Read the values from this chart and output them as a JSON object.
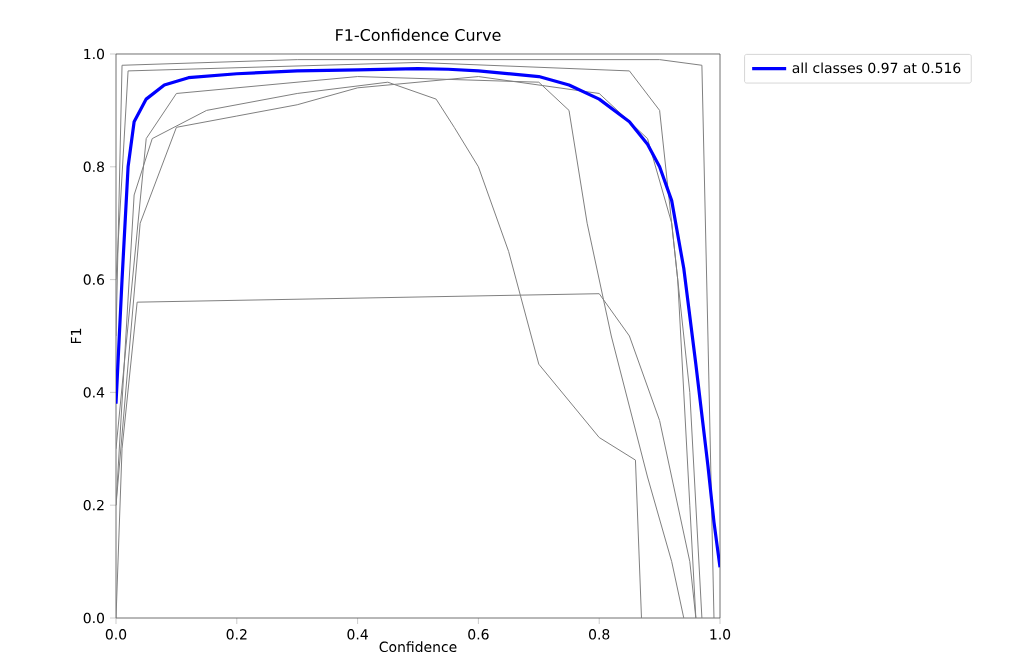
{
  "chart_data": {
    "type": "line",
    "title": "F1-Confidence Curve",
    "xlabel": "Confidence",
    "ylabel": "F1",
    "xlim": [
      0,
      1
    ],
    "ylim": [
      0,
      1
    ],
    "xticks": [
      {
        "value": 0,
        "label": "0.0"
      },
      {
        "value": 0.2,
        "label": "0.2"
      },
      {
        "value": 0.4,
        "label": "0.4"
      },
      {
        "value": 0.6,
        "label": "0.6"
      },
      {
        "value": 0.8,
        "label": "0.8"
      },
      {
        "value": 1,
        "label": "1.0"
      }
    ],
    "yticks": [
      {
        "value": 0,
        "label": "0.0"
      },
      {
        "value": 0.2,
        "label": "0.2"
      },
      {
        "value": 0.4,
        "label": "0.4"
      },
      {
        "value": 0.6,
        "label": "0.6"
      },
      {
        "value": 0.8,
        "label": "0.8"
      },
      {
        "value": 1,
        "label": "1.0"
      }
    ],
    "legend": "top right",
    "line_style": "solid",
    "series": [
      {
        "color": "#808080",
        "x": [
          0,
          0.01,
          0.035,
          0.8,
          0.85,
          0.9,
          0.95,
          0.96
        ],
        "values": [
          0,
          0.3,
          0.56,
          0.575,
          0.5,
          0.35,
          0.1,
          0
        ]
      },
      {
        "color": "#808080",
        "x": [
          0,
          0.03,
          0.06,
          0.15,
          0.3,
          0.45,
          0.53,
          0.56,
          0.6,
          0.65,
          0.7,
          0.8,
          0.86,
          0.87
        ],
        "values": [
          0.2,
          0.75,
          0.85,
          0.9,
          0.93,
          0.95,
          0.92,
          0.87,
          0.8,
          0.65,
          0.45,
          0.32,
          0.28,
          0
        ]
      },
      {
        "color": "#808080",
        "x": [
          0,
          0.01,
          0.3,
          0.6,
          0.9,
          0.97,
          0.98,
          0.99
        ],
        "values": [
          0.5,
          0.98,
          0.99,
          0.99,
          0.99,
          0.98,
          0.5,
          0
        ]
      },
      {
        "color": "#808080",
        "x": [
          0,
          0.05,
          0.1,
          0.4,
          0.7,
          0.75,
          0.78,
          0.82,
          0.88,
          0.92,
          0.94
        ],
        "values": [
          0.3,
          0.85,
          0.93,
          0.96,
          0.95,
          0.9,
          0.7,
          0.5,
          0.25,
          0.1,
          0
        ]
      },
      {
        "color": "#808080",
        "x": [
          0,
          0.04,
          0.1,
          0.2,
          0.3,
          0.4,
          0.6,
          0.8,
          0.88,
          0.92,
          0.95,
          0.97
        ],
        "values": [
          0.2,
          0.7,
          0.87,
          0.89,
          0.91,
          0.94,
          0.96,
          0.93,
          0.85,
          0.7,
          0.4,
          0
        ]
      },
      {
        "color": "#808080",
        "x": [
          0,
          0.02,
          0.5,
          0.85,
          0.9,
          0.93,
          0.95,
          0.96
        ],
        "values": [
          0.6,
          0.97,
          0.985,
          0.97,
          0.9,
          0.6,
          0.2,
          0
        ]
      },
      {
        "name": "all classes 0.97 at 0.516",
        "color": "#0000ff",
        "x": [
          0,
          0.01,
          0.02,
          0.03,
          0.05,
          0.08,
          0.12,
          0.2,
          0.3,
          0.4,
          0.5,
          0.55,
          0.6,
          0.7,
          0.75,
          0.8,
          0.85,
          0.88,
          0.9,
          0.92,
          0.94,
          0.96,
          0.98,
          0.99,
          1.0
        ],
        "values": [
          0.38,
          0.6,
          0.8,
          0.88,
          0.92,
          0.945,
          0.958,
          0.965,
          0.97,
          0.972,
          0.974,
          0.973,
          0.97,
          0.96,
          0.945,
          0.92,
          0.88,
          0.84,
          0.8,
          0.74,
          0.62,
          0.45,
          0.27,
          0.17,
          0.09
        ]
      }
    ]
  }
}
